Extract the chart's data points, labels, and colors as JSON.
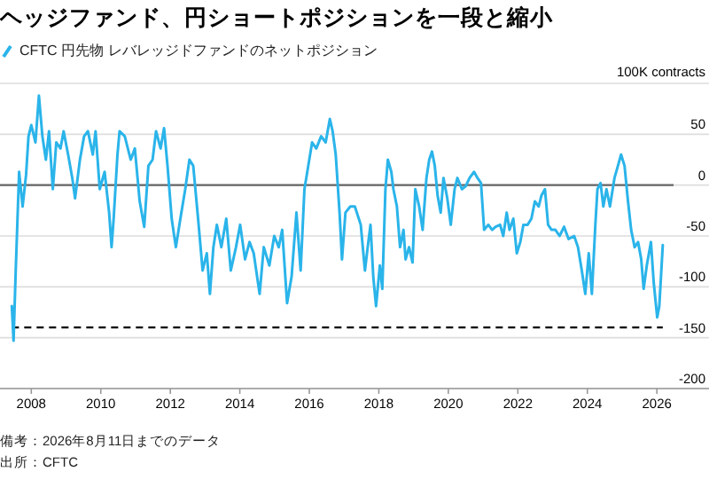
{
  "chart_data": {
    "type": "line",
    "title": "ヘッジファンド、円ショートポジションを一段と縮小",
    "ylabel": "100K contracts",
    "legend": "top left",
    "grid": "y",
    "annotations": [
      "備考：2026年8月11日までのデータ",
      "出所：CFTC"
    ],
    "xlim": [
      2007.6,
      2028.0
    ],
    "ylim": [
      -200,
      100
    ],
    "xticks": [
      {
        "value": 2008.5,
        "label": "2008"
      },
      {
        "value": 2010.5,
        "label": "2010"
      },
      {
        "value": 2012.5,
        "label": "2012"
      },
      {
        "value": 2014.5,
        "label": "2014"
      },
      {
        "value": 2016.5,
        "label": "2016"
      },
      {
        "value": 2018.5,
        "label": "2018"
      },
      {
        "value": 2020.5,
        "label": "2020"
      },
      {
        "value": 2022.5,
        "label": "2022"
      },
      {
        "value": 2024.5,
        "label": "2024"
      },
      {
        "value": 2026.5,
        "label": "2026"
      }
    ],
    "yticks": [
      {
        "value": 100,
        "label": null
      },
      50,
      0,
      -50,
      -100,
      -150,
      -200
    ],
    "ref_lines": [
      {
        "axis": "y",
        "value": 0,
        "label": null,
        "color": "#666666",
        "line_style": "solid"
      },
      {
        "axis": "y",
        "value": -140,
        "label": null,
        "color": "#000000",
        "line_style": "dashed"
      }
    ],
    "x": [
      2007.94,
      2007.99,
      2008.05,
      2008.15,
      2008.25,
      2008.35,
      2008.42,
      2008.5,
      2008.62,
      2008.72,
      2008.82,
      2008.92,
      2009.01,
      2009.12,
      2009.22,
      2009.34,
      2009.43,
      2009.56,
      2009.68,
      2009.76,
      2009.9,
      2010.02,
      2010.13,
      2010.27,
      2010.35,
      2010.47,
      2010.61,
      2010.74,
      2010.81,
      2010.87,
      2010.98,
      2011.04,
      2011.19,
      2011.36,
      2011.48,
      2011.62,
      2011.75,
      2011.87,
      2011.99,
      2012.09,
      2012.22,
      2012.32,
      2012.42,
      2012.54,
      2012.66,
      2012.79,
      2012.93,
      2013.05,
      2013.16,
      2013.3,
      2013.43,
      2013.55,
      2013.64,
      2013.74,
      2013.84,
      2013.97,
      2014.11,
      2014.24,
      2014.39,
      2014.51,
      2014.65,
      2014.78,
      2014.9,
      2015.07,
      2015.19,
      2015.35,
      2015.49,
      2015.62,
      2015.72,
      2015.86,
      2015.99,
      2016.13,
      2016.25,
      2016.36,
      2016.47,
      2016.58,
      2016.7,
      2016.84,
      2016.97,
      2017.09,
      2017.17,
      2017.26,
      2017.37,
      2017.44,
      2017.54,
      2017.68,
      2017.81,
      2017.98,
      2018.1,
      2018.18,
      2018.26,
      2018.34,
      2018.42,
      2018.53,
      2018.6,
      2018.69,
      2018.76,
      2018.86,
      2018.92,
      2019.02,
      2019.11,
      2019.21,
      2019.27,
      2019.37,
      2019.47,
      2019.55,
      2019.66,
      2019.76,
      2019.87,
      2019.95,
      2020.03,
      2020.11,
      2020.19,
      2020.28,
      2020.36,
      2020.47,
      2020.57,
      2020.68,
      2020.76,
      2020.89,
      2021.0,
      2021.11,
      2021.24,
      2021.34,
      2021.44,
      2021.53,
      2021.65,
      2021.76,
      2021.86,
      2021.99,
      2022.08,
      2022.18,
      2022.26,
      2022.37,
      2022.47,
      2022.57,
      2022.66,
      2022.78,
      2022.89,
      2022.99,
      2023.1,
      2023.18,
      2023.28,
      2023.37,
      2023.47,
      2023.58,
      2023.7,
      2023.83,
      2023.96,
      2024.12,
      2024.23,
      2024.34,
      2024.44,
      2024.54,
      2024.63,
      2024.73,
      2024.79,
      2024.88,
      2024.96,
      2025.05,
      2025.15,
      2025.28,
      2025.38,
      2025.47,
      2025.57,
      2025.67,
      2025.76,
      2025.86,
      2025.96,
      2026.05,
      2026.12,
      2026.21,
      2026.33,
      2026.41,
      2026.51,
      2026.57,
      2026.67
    ],
    "series": [
      {
        "name": "CFTC 円先物 レバレッジドファンドのネットポジション",
        "color": "#2ab4ea",
        "values": [
          -119,
          -153,
          -87,
          13,
          -21,
          10,
          48,
          59,
          42,
          88,
          48,
          25,
          53,
          -4,
          42,
          36,
          53,
          30,
          7,
          -13,
          25,
          48,
          53,
          30,
          53,
          -4,
          13,
          -27,
          -61,
          -33,
          30,
          53,
          48,
          25,
          36,
          -16,
          -41,
          19,
          25,
          53,
          36,
          56,
          19,
          -33,
          -61,
          -33,
          -4,
          25,
          19,
          -33,
          -84,
          -67,
          -107,
          -61,
          -39,
          -61,
          -33,
          -84,
          -61,
          -39,
          -73,
          -56,
          -67,
          -107,
          -61,
          -79,
          -50,
          -61,
          -44,
          -116,
          -90,
          -27,
          -84,
          -4,
          19,
          42,
          36,
          48,
          42,
          65,
          53,
          30,
          -27,
          -73,
          -27,
          -21,
          -21,
          -39,
          -84,
          -61,
          -39,
          -90,
          -119,
          -79,
          -102,
          -4,
          25,
          13,
          -4,
          -21,
          -61,
          -44,
          -73,
          -61,
          -76,
          -4,
          -21,
          -44,
          7,
          25,
          33,
          19,
          -10,
          -27,
          7,
          -13,
          -39,
          -4,
          7,
          -4,
          -1,
          7,
          13,
          7,
          2,
          -44,
          -39,
          -44,
          -41,
          -39,
          -50,
          -27,
          -44,
          -33,
          -67,
          -56,
          -39,
          -39,
          -33,
          -16,
          -21,
          -10,
          -4,
          -39,
          -44,
          -44,
          -50,
          -41,
          -53,
          -50,
          -61,
          -84,
          -107,
          -67,
          -107,
          -39,
          -4,
          2,
          -21,
          -4,
          -21,
          7,
          19,
          30,
          19,
          -16,
          -44,
          -61,
          -56,
          -73,
          -102,
          -79,
          -56,
          -96,
          -130,
          -119,
          -59
        ]
      }
    ]
  }
}
